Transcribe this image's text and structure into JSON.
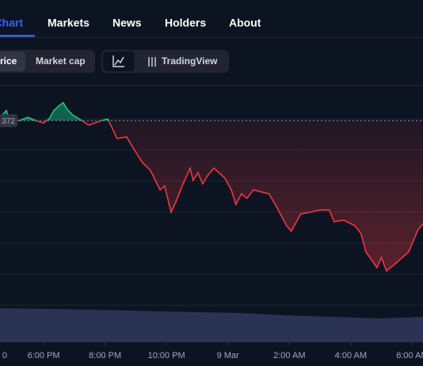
{
  "tabs": [
    "Chart",
    "Markets",
    "News",
    "Holders",
    "About"
  ],
  "chart_toggle": [
    "rice",
    "Market cap"
  ],
  "tool_button": "TradingView",
  "chart_data": {
    "type": "line",
    "baseline": 372,
    "colors": {
      "up": "#16c784",
      "down": "#ea3943"
    },
    "xlim": [
      16.58,
      30.35
    ],
    "ylim": [
      339,
      378
    ],
    "xticks": [
      {
        "value": 16,
        "label": "0"
      },
      {
        "value": 18,
        "label": "6:00 PM"
      },
      {
        "value": 20,
        "label": "8:00 PM"
      },
      {
        "value": 22,
        "label": "10:00 PM"
      },
      {
        "value": 24,
        "label": "9 Mar"
      },
      {
        "value": 26,
        "label": "2:00 AM"
      },
      {
        "value": 28,
        "label": "4:00 AM"
      },
      {
        "value": 30,
        "label": "6:00 AM"
      }
    ],
    "x": [
      16.58,
      16.79,
      16.89,
      17.22,
      17.48,
      17.74,
      18.0,
      18.18,
      18.33,
      18.51,
      18.64,
      18.77,
      18.95,
      19.16,
      19.47,
      19.88,
      20.09,
      20.24,
      20.39,
      20.7,
      20.96,
      21.22,
      21.48,
      21.79,
      21.94,
      22.15,
      22.3,
      22.51,
      22.77,
      22.87,
      23.02,
      23.18,
      23.33,
      23.54,
      23.9,
      24.11,
      24.26,
      24.44,
      24.62,
      24.83,
      25.34,
      25.6,
      25.91,
      26.06,
      26.37,
      26.68,
      26.99,
      27.3,
      27.46,
      27.77,
      28.13,
      28.33,
      28.49,
      28.85,
      29.0,
      29.16,
      29.47,
      29.88,
      30.19,
      30.34
    ],
    "values": [
      372.6,
      373.8,
      372.0,
      372.0,
      372.6,
      372.0,
      371.6,
      372.3,
      373.8,
      374.7,
      375.2,
      374.0,
      373.0,
      372.3,
      371.2,
      372.0,
      372.3,
      370.6,
      368.8,
      369.1,
      366.7,
      364.5,
      363.1,
      359.6,
      360.3,
      355.6,
      357.4,
      360.3,
      363.5,
      361.3,
      362.7,
      360.7,
      362.1,
      363.5,
      361.7,
      359.6,
      357.0,
      358.9,
      358.1,
      359.6,
      358.9,
      356.4,
      353.2,
      352.2,
      355.3,
      355.6,
      356.0,
      356.0,
      353.9,
      354.2,
      353.2,
      351.8,
      348.5,
      345.7,
      347.5,
      345.1,
      346.5,
      348.5,
      352.5,
      353.5
    ]
  }
}
